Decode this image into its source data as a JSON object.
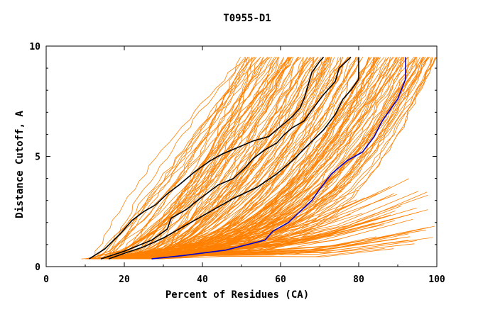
{
  "chart_data": {
    "type": "line",
    "title": "T0955-D1",
    "xlabel": "Percent of Residues (CA)",
    "ylabel": "Distance Cutoff, A",
    "xlim": [
      0,
      100
    ],
    "ylim": [
      0,
      10
    ],
    "x_ticks": [
      "0",
      "20",
      "40",
      "60",
      "80",
      "100"
    ],
    "y_ticks": [
      "0",
      "5",
      "10"
    ],
    "grid": false,
    "legend": "none",
    "colors": {
      "background_models": "#ff8000",
      "highlight_models": "#000000",
      "best_model": "#0000cc"
    },
    "series": [
      {
        "color": "#000000",
        "x": [
          11,
          15,
          19,
          22,
          25,
          28,
          31,
          34,
          36,
          38,
          42,
          45,
          49,
          53,
          57,
          59,
          61,
          63,
          65,
          66,
          67,
          68,
          70,
          71
        ],
        "y": [
          0.35,
          0.8,
          1.5,
          2.1,
          2.5,
          2.8,
          3.3,
          3.7,
          4.0,
          4.3,
          4.8,
          5.1,
          5.4,
          5.7,
          5.9,
          6.2,
          6.5,
          6.8,
          7.2,
          7.6,
          8.2,
          8.8,
          9.3,
          9.5
        ]
      },
      {
        "color": "#000000",
        "x": [
          14,
          20,
          27,
          31,
          32,
          36,
          38,
          41,
          44,
          48,
          51,
          53,
          56,
          59,
          61,
          63,
          66,
          68,
          71,
          74,
          75,
          78
        ],
        "y": [
          0.35,
          0.7,
          1.2,
          1.7,
          2.2,
          2.6,
          2.9,
          3.3,
          3.7,
          4.0,
          4.5,
          4.9,
          5.3,
          5.6,
          6.0,
          6.3,
          6.6,
          7.1,
          7.8,
          8.4,
          9.0,
          9.5
        ]
      },
      {
        "color": "#000000",
        "x": [
          16,
          20,
          25,
          30,
          33,
          37,
          42,
          48,
          54,
          59,
          63,
          67,
          71,
          74,
          76,
          78,
          80,
          80
        ],
        "y": [
          0.35,
          0.6,
          0.9,
          1.3,
          1.6,
          2.0,
          2.5,
          3.1,
          3.6,
          4.2,
          4.8,
          5.5,
          6.2,
          6.9,
          7.6,
          8.0,
          8.5,
          9.5
        ]
      },
      {
        "color": "#0000cc",
        "x": [
          27,
          35,
          46,
          56,
          58,
          62,
          65,
          68,
          70,
          73,
          77,
          81,
          84,
          86,
          88,
          90,
          92,
          92
        ],
        "y": [
          0.35,
          0.5,
          0.75,
          1.2,
          1.6,
          2.0,
          2.5,
          3.0,
          3.5,
          4.2,
          4.8,
          5.2,
          5.9,
          6.6,
          7.1,
          7.6,
          8.5,
          9.5
        ]
      }
    ]
  }
}
